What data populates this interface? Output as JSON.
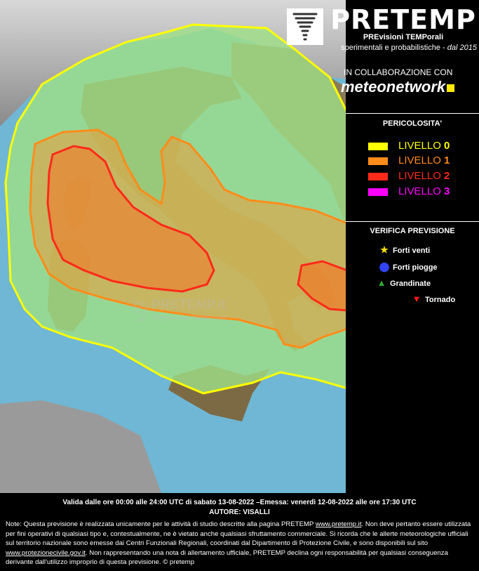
{
  "header": {
    "brand": "PRETEMP",
    "subtitle1": "PREvisioni TEMPorali",
    "subtitle2_main": "sperimentali e probabilistiche - ",
    "subtitle2_italic": "dal 2015",
    "logo_icon": "tornado-logo-icon"
  },
  "collab": {
    "label": "IN COLLABORAZIONE CON",
    "partner": "meteonetwork",
    "partner_color": "#ffea00"
  },
  "legend": {
    "title": "PERICOLOSITA'",
    "levels": [
      {
        "label": "LIVELLO ",
        "num": "0",
        "color": "#ffff00"
      },
      {
        "label": "LIVELLO ",
        "num": "1",
        "color": "#ff8c1a"
      },
      {
        "label": "LIVELLO ",
        "num": "2",
        "color": "#ff2a1a"
      },
      {
        "label": "LIVELLO ",
        "num": "3",
        "color": "#ff00ff"
      }
    ]
  },
  "verification": {
    "title": "VERIFICA PREVISIONE",
    "items": [
      {
        "label": "Forti venti",
        "icon": "star-icon",
        "color": "#ffe000"
      },
      {
        "label": "Forti piogge",
        "icon": "blue-dot-icon",
        "color": "#3344ff"
      },
      {
        "label": "Grandinate",
        "icon": "green-triangle-icon",
        "color": "#2eaa2e"
      },
      {
        "label": "Tornado",
        "icon": "red-triangle-icon",
        "color": "#ff1a1a"
      }
    ]
  },
  "watermark": {
    "title": "PRETEMP.it",
    "subtitle": "PREvisioni TEMPorali"
  },
  "footer": {
    "validity": "Valida dalle ore 00:00 alle 24:00 UTC di sabato 13-08-2022 –Emessa: venerdì 12-08-2022 alle ore 17:30 UTC",
    "author": "AUTORE: VISALLI",
    "note_part1": "Note: Questa previsione è realizzata unicamente per le attività di studio descritte alla pagina PRETEMP ",
    "note_link1": "www.pretemp.it",
    "note_part2": ". Non deve pertanto essere utilizzata per fini operativi di qualsiasi tipo e, contestualmente, ne è vietato anche qualsiasi sfruttamento commerciale. Si ricorda che le allerte meteorologiche ufficiali sul territorio nazionale sono emesse dai Centri Funzionali Regionali, coordinati dal Dipartimento di Protezione Civile, e sono disponibili sul sito ",
    "note_link2": "www.protezionecivile.gov.it",
    "note_part3": ". Non rappresentando una nota di allertamento ufficiale, PRETEMP declina ogni responsabilità per qualsiasi conseguenza derivante dall'utilizzo improprio di questa previsione.  © pretemp"
  }
}
